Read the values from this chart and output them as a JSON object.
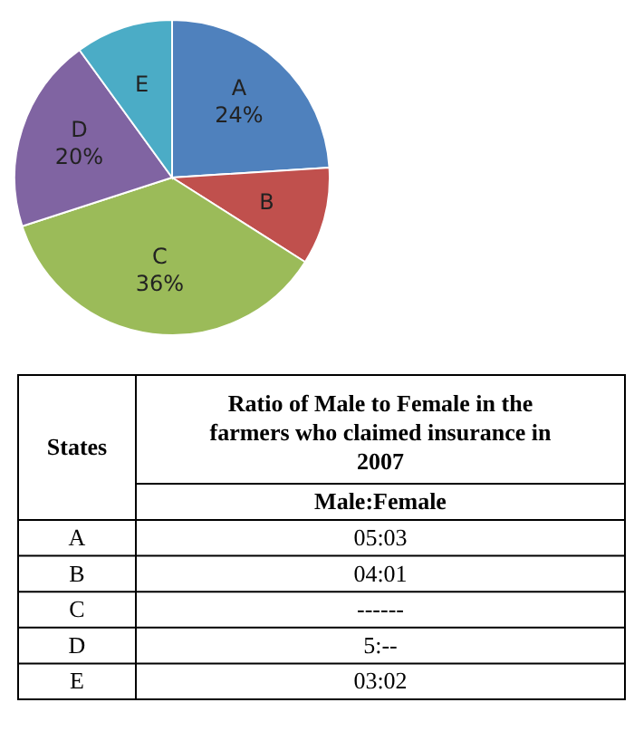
{
  "chart_data": [
    {
      "type": "pie",
      "categories": [
        "A",
        "B",
        "C",
        "D",
        "E"
      ],
      "values": [
        24,
        10,
        36,
        20,
        10
      ],
      "colors": [
        "#4f81bd",
        "#c0504d",
        "#9bbb59",
        "#8064a2",
        "#4bacc6"
      ],
      "value_labels": [
        "24%",
        null,
        "36%",
        "20%",
        null
      ]
    },
    {
      "type": "other",
      "title": "Ratio of Male to Female in the farmers who claimed insurance in 2007",
      "xlabel": "States",
      "ylabel": "Male:Female",
      "categories": [
        "A",
        "B",
        "C",
        "D",
        "E"
      ],
      "value_labels": [
        "05:03",
        "04:01",
        "------",
        "5:--",
        "03:02"
      ]
    }
  ]
}
